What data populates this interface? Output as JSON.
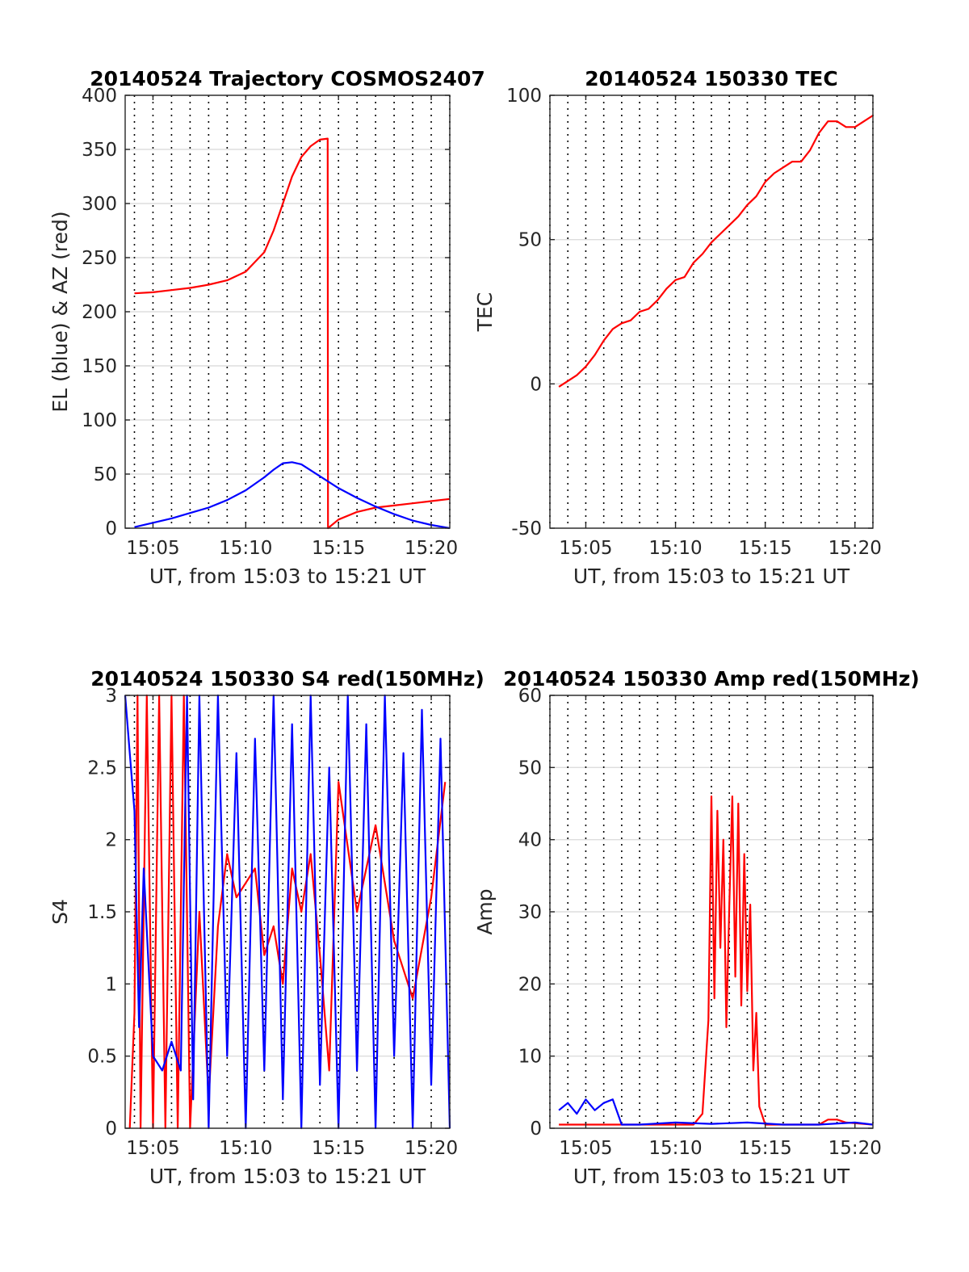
{
  "colors": {
    "red": "#ff0000",
    "blue": "#0000ff",
    "axis": "#262626",
    "grid": "#dddddd"
  },
  "chart_data": [
    {
      "type": "line",
      "title": "20140524 Trajectory COSMOS2407",
      "xlabel": "UT, from 15:03 to 15:21 UT",
      "ylabel": "EL (blue) & AZ (red)",
      "xlim": [
        "15:03:30",
        "15:21:00"
      ],
      "ylim": [
        0,
        400
      ],
      "yticks": [
        0,
        50,
        100,
        150,
        200,
        250,
        300,
        350,
        400
      ],
      "xticks": [
        "15:05",
        "15:10",
        "15:15",
        "15:20"
      ],
      "grid": {
        "x": "dotted every 1 minute",
        "y": "major ticks"
      },
      "series": [
        {
          "color": "red",
          "x": [
            "15:04:00",
            "15:05:00",
            "15:06:00",
            "15:07:00",
            "15:08:00",
            "15:09:00",
            "15:10:00",
            "15:11:00",
            "15:11:30",
            "15:12:00",
            "15:12:30",
            "15:13:00",
            "15:13:30",
            "15:14:00",
            "15:14:25",
            "15:14:26",
            "15:15:00",
            "15:16:00",
            "15:17:00",
            "15:18:00",
            "15:19:00",
            "15:20:00",
            "15:21:00"
          ],
          "values": [
            217,
            218,
            220,
            222,
            225,
            229,
            237,
            255,
            275,
            300,
            325,
            343,
            353,
            359,
            360,
            0,
            8,
            15,
            19,
            21,
            23,
            25,
            27
          ]
        },
        {
          "color": "blue",
          "x": [
            "15:04:00",
            "15:05:00",
            "15:06:00",
            "15:07:00",
            "15:08:00",
            "15:09:00",
            "15:10:00",
            "15:11:00",
            "15:11:30",
            "15:12:00",
            "15:12:30",
            "15:13:00",
            "15:14:00",
            "15:15:00",
            "15:16:00",
            "15:17:00",
            "15:18:00",
            "15:19:00",
            "15:20:00",
            "15:21:00"
          ],
          "values": [
            1,
            5,
            9,
            14,
            19,
            26,
            35,
            47,
            54,
            60,
            61,
            59,
            48,
            37,
            28,
            20,
            13,
            7,
            3,
            0
          ]
        }
      ]
    },
    {
      "type": "line",
      "title": "20140524 150330 TEC",
      "xlabel": "UT, from 15:03 to 15:21 UT",
      "ylabel": "TEC",
      "xlim": [
        "15:03:00",
        "15:21:00"
      ],
      "ylim": [
        -50,
        100
      ],
      "yticks": [
        -50,
        0,
        50,
        100
      ],
      "xticks": [
        "15:05",
        "15:10",
        "15:15",
        "15:20"
      ],
      "series": [
        {
          "color": "red",
          "x": [
            "15:03:30",
            "15:04:00",
            "15:04:30",
            "15:05:00",
            "15:05:30",
            "15:06:00",
            "15:06:30",
            "15:07:00",
            "15:07:30",
            "15:08:00",
            "15:08:30",
            "15:09:00",
            "15:09:30",
            "15:10:00",
            "15:10:30",
            "15:11:00",
            "15:11:30",
            "15:12:00",
            "15:12:30",
            "15:13:00",
            "15:13:30",
            "15:14:00",
            "15:14:30",
            "15:15:00",
            "15:15:30",
            "15:16:00",
            "15:16:30",
            "15:17:00",
            "15:17:30",
            "15:18:00",
            "15:18:30",
            "15:19:00",
            "15:19:30",
            "15:20:00",
            "15:20:30",
            "15:21:00"
          ],
          "values": [
            -1,
            1,
            3,
            6,
            10,
            15,
            19,
            21,
            22,
            25,
            26,
            29,
            33,
            36,
            37,
            42,
            45,
            49,
            52,
            55,
            58,
            62,
            65,
            70,
            73,
            75,
            77,
            77,
            81,
            87,
            91,
            91,
            89,
            89,
            91,
            93
          ]
        }
      ]
    },
    {
      "type": "line",
      "title": "20140524 150330 S4 red(150MHz)",
      "xlabel": "UT, from 15:03 to 15:21 UT",
      "ylabel": "S4",
      "xlim": [
        "15:03:30",
        "15:21:00"
      ],
      "ylim": [
        0,
        3
      ],
      "yticks": [
        0,
        0.5,
        1,
        1.5,
        2,
        2.5,
        3
      ],
      "xticks": [
        "15:05",
        "15:10",
        "15:15",
        "15:20"
      ],
      "series": [
        {
          "color": "red",
          "x": [
            "15:03:45",
            "15:04:00",
            "15:04:10",
            "15:04:20",
            "15:04:40",
            "15:05:00",
            "15:05:20",
            "15:05:40",
            "15:06:00",
            "15:06:20",
            "15:06:40",
            "15:07:00",
            "15:07:30",
            "15:08:00",
            "15:08:30",
            "15:09:00",
            "15:09:30",
            "15:10:00",
            "15:10:30",
            "15:11:00",
            "15:11:30",
            "15:12:00",
            "15:12:30",
            "15:13:00",
            "15:13:30",
            "15:14:00",
            "15:14:30",
            "15:15:00",
            "15:16:00",
            "15:17:00",
            "15:18:00",
            "15:19:00",
            "15:20:00",
            "15:20:45"
          ],
          "values": [
            0,
            0.8,
            3,
            0,
            3,
            0,
            3,
            0,
            3,
            0,
            3,
            0,
            1.5,
            0.2,
            1.4,
            1.9,
            1.6,
            1.7,
            1.8,
            1.2,
            1.4,
            1.0,
            1.8,
            1.5,
            1.9,
            1.2,
            0.4,
            2.4,
            1.5,
            2.1,
            1.3,
            0.9,
            1.6,
            2.4
          ]
        },
        {
          "color": "blue",
          "x": [
            "15:03:30",
            "15:03:45",
            "15:04:00",
            "15:04:15",
            "15:04:30",
            "15:05:00",
            "15:05:30",
            "15:06:00",
            "15:06:30",
            "15:06:50",
            "15:07:10",
            "15:07:30",
            "15:08:00",
            "15:08:30",
            "15:09:00",
            "15:09:30",
            "15:10:00",
            "15:10:30",
            "15:11:00",
            "15:11:30",
            "15:12:00",
            "15:12:30",
            "15:13:00",
            "15:13:30",
            "15:14:00",
            "15:14:30",
            "15:15:00",
            "15:15:30",
            "15:16:00",
            "15:16:30",
            "15:17:00",
            "15:17:30",
            "15:18:00",
            "15:18:30",
            "15:19:00",
            "15:19:30",
            "15:20:00",
            "15:20:30",
            "15:21:00"
          ],
          "values": [
            3,
            2.6,
            2.2,
            0.7,
            1.8,
            0.5,
            0.4,
            0.6,
            0.4,
            3,
            0.2,
            3,
            0,
            3,
            0.5,
            2.6,
            0,
            2.7,
            0.4,
            3,
            0.2,
            2.8,
            0,
            3,
            0.3,
            2.5,
            0,
            3,
            0.4,
            2.8,
            0,
            3,
            0.5,
            2.6,
            0,
            2.9,
            0.3,
            2.7,
            0
          ]
        }
      ]
    },
    {
      "type": "line",
      "title": "20140524 150330 Amp red(150MHz)",
      "xlabel": "UT, from 15:03 to 15:21 UT",
      "ylabel": "Amp",
      "xlim": [
        "15:03:00",
        "15:21:00"
      ],
      "ylim": [
        0,
        60
      ],
      "yticks": [
        0,
        10,
        20,
        30,
        40,
        50,
        60
      ],
      "xticks": [
        "15:05",
        "15:10",
        "15:15",
        "15:20"
      ],
      "series": [
        {
          "color": "red",
          "x": [
            "15:03:30",
            "15:11:00",
            "15:11:30",
            "15:11:50",
            "15:12:00",
            "15:12:10",
            "15:12:20",
            "15:12:30",
            "15:12:40",
            "15:12:50",
            "15:13:00",
            "15:13:10",
            "15:13:20",
            "15:13:30",
            "15:13:40",
            "15:13:50",
            "15:14:00",
            "15:14:10",
            "15:14:20",
            "15:14:30",
            "15:14:40",
            "15:15:00",
            "15:18:00",
            "15:18:30",
            "15:19:00",
            "15:19:30",
            "15:21:00"
          ],
          "values": [
            0.5,
            0.5,
            2,
            15,
            46,
            18,
            44,
            25,
            40,
            14,
            31,
            46,
            21,
            45,
            17,
            38,
            19,
            31,
            8,
            16,
            3,
            0.5,
            0.5,
            1.2,
            1.2,
            0.8,
            0.5
          ]
        },
        {
          "color": "blue",
          "x": [
            "15:03:30",
            "15:04:00",
            "15:04:30",
            "15:05:00",
            "15:05:30",
            "15:06:00",
            "15:06:30",
            "15:07:00",
            "15:08:00",
            "15:10:00",
            "15:12:00",
            "15:14:00",
            "15:16:00",
            "15:18:00",
            "15:20:00",
            "15:21:00"
          ],
          "values": [
            2.5,
            3.5,
            2,
            4,
            2.5,
            3.5,
            4,
            0.5,
            0.5,
            0.8,
            0.6,
            0.8,
            0.5,
            0.5,
            0.8,
            0.5
          ]
        }
      ]
    }
  ]
}
